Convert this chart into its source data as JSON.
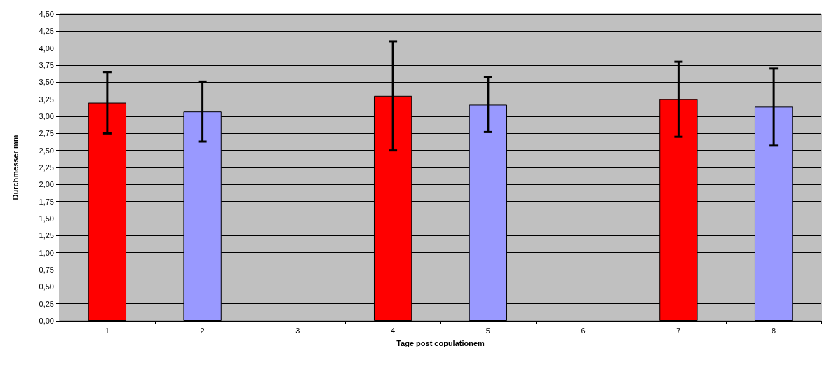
{
  "chart_data": {
    "type": "bar",
    "xlabel": "Tage post copulationem",
    "ylabel": "Durchmesser mm",
    "categories": [
      "1",
      "2",
      "3",
      "4",
      "5",
      "6",
      "7",
      "8"
    ],
    "values": [
      3.2,
      3.07,
      null,
      3.3,
      3.17,
      null,
      3.25,
      3.14
    ],
    "colors": [
      "#ff0000",
      "#9999ff",
      null,
      "#ff0000",
      "#9999ff",
      null,
      "#ff0000",
      "#9999ff"
    ],
    "errors": [
      [
        2.75,
        3.65
      ],
      [
        2.63,
        3.51
      ],
      null,
      [
        2.5,
        4.1
      ],
      [
        2.77,
        3.57
      ],
      null,
      [
        2.7,
        3.8
      ],
      [
        2.57,
        3.7
      ]
    ],
    "ylim": [
      0,
      4.5
    ],
    "yticks": [
      {
        "value": 0,
        "label": "0,00"
      },
      {
        "value": 0.25,
        "label": "0,25"
      },
      {
        "value": 0.5,
        "label": "0,50"
      },
      {
        "value": 0.75,
        "label": "0,75"
      },
      {
        "value": 1,
        "label": "1,00"
      },
      {
        "value": 1.25,
        "label": "1,25"
      },
      {
        "value": 1.5,
        "label": "1,50"
      },
      {
        "value": 1.75,
        "label": "1,75"
      },
      {
        "value": 2,
        "label": "2,00"
      },
      {
        "value": 2.25,
        "label": "2,25"
      },
      {
        "value": 2.5,
        "label": "2,50"
      },
      {
        "value": 2.75,
        "label": "2,75"
      },
      {
        "value": 3,
        "label": "3,00"
      },
      {
        "value": 3.25,
        "label": "3,25"
      },
      {
        "value": 3.5,
        "label": "3,50"
      },
      {
        "value": 3.75,
        "label": "3,75"
      },
      {
        "value": 4,
        "label": "4,00"
      },
      {
        "value": 4.25,
        "label": "4,25"
      },
      {
        "value": 4.5,
        "label": "4,50"
      }
    ],
    "grid": "y"
  }
}
